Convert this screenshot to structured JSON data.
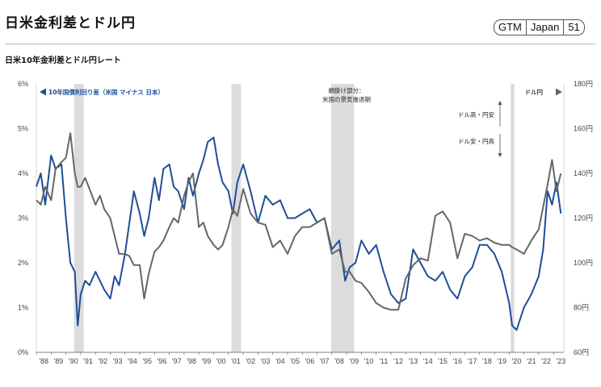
{
  "header": {
    "title": "日米金利差とドル円",
    "badge": [
      "GTM",
      "Japan",
      "51"
    ]
  },
  "chart_data": {
    "type": "line",
    "title": "日米10年金利差とドル円レート",
    "x_tick_labels": [
      "'88",
      "'89",
      "'90",
      "'91",
      "'92",
      "'93",
      "'94",
      "'95",
      "'96",
      "'97",
      "'98",
      "'99",
      "'00",
      "'01",
      "'02",
      "'03",
      "'04",
      "'05",
      "'06",
      "'07",
      "'08",
      "'09",
      "'10",
      "'11",
      "'12",
      "'13",
      "'14",
      "'15",
      "'16",
      "'17",
      "'18",
      "'19",
      "'20",
      "'21",
      "'22",
      "'23"
    ],
    "x_range": [
      1988,
      2023.7
    ],
    "y_left": {
      "range": [
        0,
        6
      ],
      "ticks": [
        "0%",
        "1%",
        "2%",
        "3%",
        "4%",
        "5%",
        "6%"
      ]
    },
    "y_right": {
      "range": [
        60,
        180
      ],
      "ticks": [
        "60円",
        "80円",
        "100円",
        "120円",
        "140円",
        "160円",
        "180円"
      ]
    },
    "legend_left": "10年国債利回り差（米国 マイナス 日本）",
    "legend_right": "ドル円",
    "legend_left_color": "#1f4e98",
    "legend_right_color": "#666666",
    "shaded_annotation": [
      "網掛け部分：",
      "米国の景気後退期"
    ],
    "arrow_up_label": "ドル高・円安",
    "arrow_down_label": "ドル安・円高",
    "recessions": [
      [
        1990.55,
        1991.2
      ],
      [
        2001.2,
        2001.85
      ],
      [
        2007.95,
        2009.5
      ],
      [
        2020.1,
        2020.35
      ]
    ],
    "series": [
      {
        "name": "10年国債利回り差（米国 マイナス 日本）",
        "axis": "left",
        "color": "#1f4e98",
        "x": [
          1988.0,
          1988.3,
          1988.6,
          1989.0,
          1989.3,
          1989.7,
          1990.0,
          1990.3,
          1990.6,
          1990.8,
          1991.0,
          1991.3,
          1991.6,
          1992.0,
          1992.3,
          1992.6,
          1993.0,
          1993.3,
          1993.6,
          1994.0,
          1994.3,
          1994.6,
          1995.0,
          1995.3,
          1995.6,
          1996.0,
          1996.3,
          1996.6,
          1997.0,
          1997.3,
          1997.6,
          1998.0,
          1998.3,
          1998.6,
          1999.0,
          1999.3,
          1999.6,
          2000.0,
          2000.3,
          2000.6,
          2001.0,
          2001.3,
          2001.6,
          2002.0,
          2002.5,
          2003.0,
          2003.5,
          2004.0,
          2004.5,
          2005.0,
          2005.5,
          2006.0,
          2006.5,
          2007.0,
          2007.5,
          2008.0,
          2008.5,
          2008.9,
          2009.2,
          2009.6,
          2010.0,
          2010.5,
          2011.0,
          2011.5,
          2012.0,
          2012.5,
          2013.0,
          2013.5,
          2014.0,
          2014.5,
          2015.0,
          2015.5,
          2016.0,
          2016.5,
          2017.0,
          2017.5,
          2018.0,
          2018.5,
          2019.0,
          2019.5,
          2020.0,
          2020.2,
          2020.5,
          2021.0,
          2021.5,
          2022.0,
          2022.3,
          2022.6,
          2022.9,
          2023.2,
          2023.5
        ],
        "y": [
          3.7,
          4.0,
          3.3,
          4.4,
          4.1,
          4.2,
          3.0,
          2.0,
          1.8,
          0.6,
          1.3,
          1.6,
          1.5,
          1.8,
          1.6,
          1.4,
          1.2,
          1.7,
          1.5,
          2.2,
          2.9,
          3.6,
          3.1,
          2.6,
          3.0,
          3.9,
          3.4,
          4.1,
          4.2,
          3.7,
          3.6,
          3.2,
          3.9,
          3.5,
          4.0,
          4.3,
          4.7,
          4.8,
          4.2,
          3.8,
          3.6,
          3.1,
          3.8,
          4.2,
          3.6,
          2.9,
          3.5,
          3.3,
          3.4,
          3.0,
          3.0,
          3.1,
          3.2,
          2.9,
          3.0,
          2.3,
          2.5,
          1.6,
          1.9,
          2.0,
          2.5,
          2.2,
          2.4,
          1.8,
          1.3,
          1.1,
          1.2,
          2.3,
          2.0,
          1.7,
          1.6,
          1.8,
          1.4,
          1.2,
          1.7,
          1.9,
          2.4,
          2.4,
          2.2,
          1.8,
          1.1,
          0.6,
          0.5,
          1.0,
          1.3,
          1.7,
          2.3,
          3.6,
          3.3,
          3.8,
          3.1
        ]
      },
      {
        "name": "ドル円",
        "axis": "right",
        "color": "#666666",
        "x": [
          1988.0,
          1988.3,
          1988.6,
          1989.0,
          1989.3,
          1989.7,
          1990.0,
          1990.3,
          1990.6,
          1990.8,
          1991.0,
          1991.3,
          1991.6,
          1992.0,
          1992.3,
          1992.6,
          1993.0,
          1993.3,
          1993.6,
          1994.0,
          1994.3,
          1994.6,
          1995.0,
          1995.3,
          1995.6,
          1996.0,
          1996.3,
          1996.6,
          1997.0,
          1997.3,
          1997.6,
          1998.0,
          1998.3,
          1998.6,
          1999.0,
          1999.3,
          1999.6,
          2000.0,
          2000.3,
          2000.6,
          2001.0,
          2001.3,
          2001.6,
          2002.0,
          2002.5,
          2003.0,
          2003.5,
          2004.0,
          2004.5,
          2005.0,
          2005.5,
          2006.0,
          2006.5,
          2007.0,
          2007.5,
          2008.0,
          2008.5,
          2008.9,
          2009.2,
          2009.6,
          2010.0,
          2010.5,
          2011.0,
          2011.5,
          2012.0,
          2012.5,
          2013.0,
          2013.5,
          2014.0,
          2014.5,
          2015.0,
          2015.5,
          2016.0,
          2016.5,
          2017.0,
          2017.5,
          2018.0,
          2018.5,
          2019.0,
          2019.5,
          2020.0,
          2020.2,
          2020.5,
          2021.0,
          2021.5,
          2022.0,
          2022.3,
          2022.6,
          2022.9,
          2023.2,
          2023.5
        ],
        "y": [
          128,
          126,
          134,
          128,
          142,
          145,
          147,
          158,
          140,
          134,
          134,
          138,
          133,
          126,
          130,
          124,
          120,
          112,
          104,
          104,
          103,
          99,
          99,
          84,
          95,
          105,
          107,
          110,
          116,
          120,
          118,
          130,
          136,
          140,
          116,
          118,
          112,
          108,
          106,
          108,
          116,
          124,
          121,
          133,
          122,
          118,
          117,
          107,
          110,
          104,
          112,
          116,
          116,
          118,
          120,
          104,
          106,
          96,
          96,
          92,
          91,
          87,
          82,
          80,
          79,
          79,
          93,
          99,
          102,
          101,
          121,
          123,
          118,
          102,
          113,
          112,
          110,
          111,
          109,
          108,
          108,
          107,
          106,
          104,
          110,
          115,
          125,
          135,
          146,
          132,
          140
        ]
      }
    ]
  }
}
